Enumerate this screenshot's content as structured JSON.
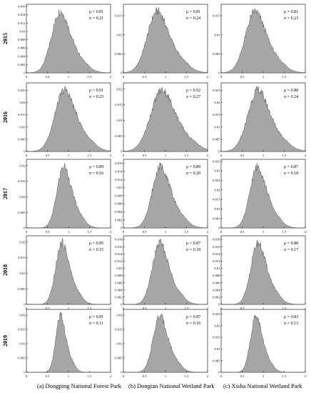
{
  "figure": {
    "row_labels": [
      "2015",
      "2016",
      "2017",
      "2018",
      "2019"
    ],
    "column_captions": [
      "(a) Dongping National Forest Park",
      "(b) Dongtan National Wetland Park",
      "(c) Xisha National Wetland Park"
    ],
    "colors": {
      "fill": "#a6a6a6",
      "stroke": "#555555",
      "axis": "#000000"
    }
  },
  "chart_data": [
    {
      "type": "area",
      "year": "2015",
      "park": "(a) Dongping National Forest Park",
      "mu": 0.81,
      "sigma": 0.21,
      "annotation": [
        "μ = 0.81",
        "σ = 0.21"
      ],
      "xlim": [
        0,
        2
      ],
      "xticks": [
        "0",
        "0.5",
        "1",
        "1.5",
        "2"
      ],
      "ylim": [
        0,
        0.0165
      ],
      "yticks": [
        "0",
        "0.002",
        "0.004",
        "0.006",
        "0.008",
        "0.01",
        "0.012",
        "0.014",
        "0.016"
      ]
    },
    {
      "type": "area",
      "year": "2015",
      "park": "(b) Dongtan National Wetland Park",
      "mu": 0.81,
      "sigma": 0.24,
      "annotation": [
        "μ = 0.81",
        "σ = 0.24"
      ],
      "xlim": [
        0,
        2
      ],
      "xticks": [
        "0",
        "0.5",
        "1",
        "1.5",
        "2"
      ],
      "ylim": [
        0,
        0.018
      ],
      "yticks": [
        "0",
        "0.005",
        "0.01",
        "0.015"
      ]
    },
    {
      "type": "area",
      "year": "2015",
      "park": "(c) Xisha National Wetland Park",
      "mu": 0.81,
      "sigma": 0.23,
      "annotation": [
        "μ = 0.81",
        "σ = 0.23"
      ],
      "xlim": [
        0,
        2
      ],
      "xticks": [
        "0",
        "0.5",
        "1",
        "1.5",
        "2"
      ],
      "ylim": [
        0,
        0.018
      ],
      "yticks": [
        "0",
        "0.005",
        "0.01",
        "0.015"
      ]
    },
    {
      "type": "area",
      "year": "2016",
      "park": "(a) Dongping National Forest Park",
      "mu": 0.91,
      "sigma": 0.23,
      "annotation": [
        "μ = 0.91",
        "σ = 0.23"
      ],
      "xlim": [
        0,
        2
      ],
      "xticks": [
        "0",
        "0.5",
        "1",
        "1.5",
        "2"
      ],
      "ylim": [
        0,
        0.028
      ],
      "yticks": [
        "0",
        "0.005",
        "0.01",
        "0.015",
        "0.02",
        "0.025"
      ]
    },
    {
      "type": "area",
      "year": "2016",
      "park": "(b) Dongtan National Wetland Park",
      "mu": 0.92,
      "sigma": 0.27,
      "annotation": [
        "μ = 0.92",
        "σ = 0.27"
      ],
      "xlim": [
        0,
        2
      ],
      "xticks": [
        "0",
        "0.5",
        "1",
        "1.5",
        "2"
      ],
      "ylim": [
        0,
        0.022
      ],
      "yticks": [
        "0",
        "0.005",
        "0.01",
        "0.015",
        "0.02"
      ]
    },
    {
      "type": "area",
      "year": "2016",
      "park": "(c) Xisha National Wetland Park",
      "mu": 0.88,
      "sigma": 0.24,
      "annotation": [
        "μ = 0.88",
        "σ = 0.24"
      ],
      "xlim": [
        0,
        2
      ],
      "xticks": [
        "0",
        "0.5",
        "1",
        "1.5",
        "2"
      ],
      "ylim": [
        0,
        0.028
      ],
      "yticks": [
        "0",
        "0.005",
        "0.01",
        "0.015",
        "0.02",
        "0.025"
      ]
    },
    {
      "type": "area",
      "year": "2017",
      "park": "(a) Dongping National Forest Park",
      "mu": 0.89,
      "sigma": 0.16,
      "annotation": [
        "μ = 0.89",
        "σ = 0.16"
      ],
      "xlim": [
        0,
        2
      ],
      "xticks": [
        "0",
        "0.5",
        "1",
        "1.5",
        "2"
      ],
      "ylim": [
        0,
        0.022
      ],
      "yticks": [
        "0",
        "0.005",
        "0.01",
        "0.015",
        "0.02"
      ]
    },
    {
      "type": "area",
      "year": "2017",
      "park": "(b) Dongtan National Wetland Park",
      "mu": 0.89,
      "sigma": 0.2,
      "annotation": [
        "μ = 0.89",
        "σ = 0.20"
      ],
      "xlim": [
        0,
        2
      ],
      "xticks": [
        "0",
        "0.5",
        "1",
        "1.5",
        "2"
      ],
      "ylim": [
        0,
        0.017
      ],
      "yticks": [
        "0",
        "0.002",
        "0.004",
        "0.006",
        "0.008",
        "0.01",
        "0.012",
        "0.014",
        "0.016"
      ]
    },
    {
      "type": "area",
      "year": "2017",
      "park": "(c) Xisha National Wetland Park",
      "mu": 0.87,
      "sigma": 0.18,
      "annotation": [
        "μ = 0.87",
        "σ = 0.18"
      ],
      "xlim": [
        0,
        2
      ],
      "xticks": [
        "0",
        "0.5",
        "1",
        "1.5",
        "2"
      ],
      "ylim": [
        0,
        0.036
      ],
      "yticks": [
        "0",
        "0.005",
        "0.01",
        "0.015",
        "0.02",
        "0.025",
        "0.03",
        "0.035"
      ]
    },
    {
      "type": "area",
      "year": "2018",
      "park": "(a) Dongping National Forest Park",
      "mu": 0.85,
      "sigma": 0.15,
      "annotation": [
        "μ = 0.85",
        "σ = 0.15"
      ],
      "xlim": [
        0,
        2
      ],
      "xticks": [
        "0",
        "0.5",
        "1",
        "1.5",
        "2"
      ],
      "ylim": [
        0,
        0.022
      ],
      "yticks": [
        "0",
        "0.005",
        "0.01",
        "0.015",
        "0.02"
      ]
    },
    {
      "type": "area",
      "year": "2018",
      "park": "(b) Dongtan National Wetland Park",
      "mu": 0.87,
      "sigma": 0.18,
      "annotation": [
        "μ = 0.87",
        "σ = 0.18"
      ],
      "xlim": [
        0,
        2
      ],
      "xticks": [
        "0",
        "0.5",
        "1",
        "1.5",
        "2"
      ],
      "ylim": [
        0,
        0.019
      ],
      "yticks": [
        "0",
        "0.002",
        "0.004",
        "0.006",
        "0.008",
        "0.01",
        "0.012",
        "0.014",
        "0.016",
        "0.018"
      ]
    },
    {
      "type": "area",
      "year": "2018",
      "park": "(c) Xisha National Wetland Park",
      "mu": 0.88,
      "sigma": 0.17,
      "annotation": [
        "μ = 0.88",
        "σ = 0.17"
      ],
      "xlim": [
        0,
        2
      ],
      "xticks": [
        "0",
        "0.5",
        "1",
        "1.5",
        "2"
      ],
      "ylim": [
        0,
        0.019
      ],
      "yticks": [
        "0",
        "0.002",
        "0.004",
        "0.006",
        "0.008",
        "0.01",
        "0.012",
        "0.014",
        "0.016",
        "0.018"
      ]
    },
    {
      "type": "area",
      "year": "2019",
      "park": "(a) Dongping National Forest Park",
      "mu": 0.81,
      "sigma": 0.11,
      "annotation": [
        "μ = 0.81",
        "σ = 0.11"
      ],
      "xlim": [
        0,
        2
      ],
      "xticks": [
        "0",
        "0.5",
        "1",
        "1.5",
        "2"
      ],
      "ylim": [
        0,
        0.022
      ],
      "yticks": [
        "0",
        "0.005",
        "0.01",
        "0.015",
        "0.02"
      ]
    },
    {
      "type": "area",
      "year": "2019",
      "park": "(b) Dongtan National Wetland Park",
      "mu": 0.87,
      "sigma": 0.16,
      "annotation": [
        "μ = 0.87",
        "σ = 0.16"
      ],
      "xlim": [
        0,
        2
      ],
      "xticks": [
        "0",
        "0.5",
        "1",
        "1.5",
        "2"
      ],
      "ylim": [
        0,
        0.022
      ],
      "yticks": [
        "0",
        "0.005",
        "0.01",
        "0.015",
        "0.02"
      ]
    },
    {
      "type": "area",
      "year": "2019",
      "park": "(c) Xisha National Wetland Park",
      "mu": 0.83,
      "sigma": 0.13,
      "annotation": [
        "μ = 0.83",
        "σ = 0.13"
      ],
      "xlim": [
        0,
        2
      ],
      "xticks": [
        "0",
        "0.5",
        "1",
        "1.5",
        "2"
      ],
      "ylim": [
        0,
        0.027
      ],
      "yticks": [
        "0",
        "0.005",
        "0.01",
        "0.015",
        "0.02",
        "0.025"
      ]
    }
  ]
}
